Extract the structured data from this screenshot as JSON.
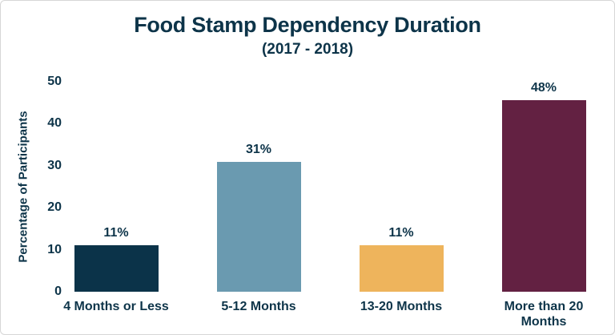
{
  "chart_data": {
    "type": "bar",
    "title": "Food Stamp Dependency Duration",
    "subtitle": "(2017 - 2018)",
    "xlabel": "",
    "ylabel": "Percentage of Participants",
    "categories": [
      "4 Months or Less",
      "5-12 Months",
      "13-20 Months",
      "More than 20 Months"
    ],
    "values": [
      11,
      31,
      11,
      48
    ],
    "value_labels": [
      "11%",
      "31%",
      "11%",
      "48%"
    ],
    "bar_colors": [
      "#0b3349",
      "#6a9ab0",
      "#eeb45c",
      "#632142"
    ],
    "ylim": [
      0,
      50
    ],
    "yticks": [
      0,
      10,
      20,
      30,
      40,
      50
    ],
    "grid": false,
    "legend": false,
    "text_color": "#0d3449",
    "background_color": "#ffffff",
    "border_color": "#d6d6d6"
  }
}
